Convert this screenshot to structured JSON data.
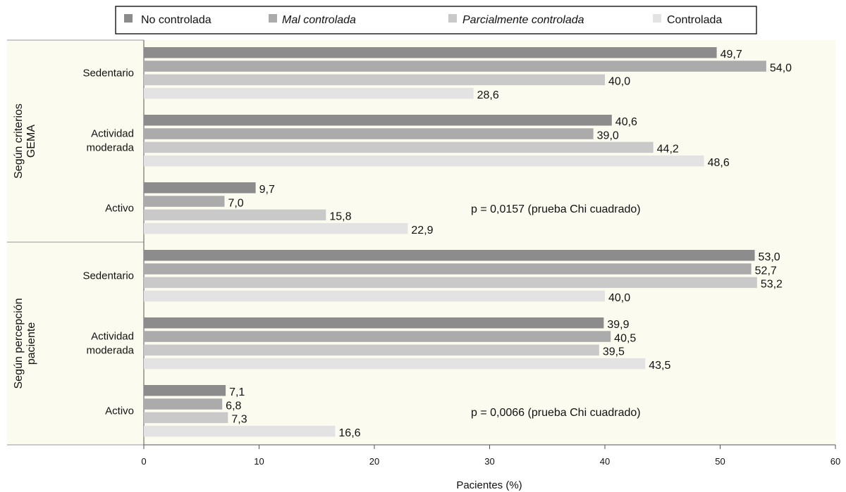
{
  "chart_data": {
    "type": "bar",
    "orientation": "horizontal",
    "legend_position": "top",
    "xlabel": "Pacientes (%)",
    "xlim": [
      0,
      60
    ],
    "xticks": [
      0,
      10,
      20,
      30,
      40,
      50,
      60
    ],
    "series": [
      {
        "name": "No controlada",
        "italic": false,
        "color": "#8c8c8c"
      },
      {
        "name": "Mal controlada",
        "italic": true,
        "color": "#ababab"
      },
      {
        "name": "Parcialmente controlada",
        "italic": true,
        "color": "#c9c9c9"
      },
      {
        "name": "Controlada",
        "italic": false,
        "color": "#e3e3e3"
      }
    ],
    "groups": [
      {
        "label_lines": [
          "Según criterios",
          "GEMA"
        ],
        "annotation": "p = 0,0157 (prueba Chi cuadrado)",
        "categories": [
          {
            "label_lines": [
              "Sedentario"
            ],
            "values": [
              49.7,
              54.0,
              40.0,
              28.6
            ],
            "labels": [
              "49,7",
              "54,0",
              "40,0",
              "28,6"
            ]
          },
          {
            "label_lines": [
              "Actividad",
              "moderada"
            ],
            "values": [
              40.6,
              39.0,
              44.2,
              48.6
            ],
            "labels": [
              "40,6",
              "39,0",
              "44,2",
              "48,6"
            ]
          },
          {
            "label_lines": [
              "Activo"
            ],
            "values": [
              9.7,
              7.0,
              15.8,
              22.9
            ],
            "labels": [
              "9,7",
              "7,0",
              "15,8",
              "22,9"
            ]
          }
        ]
      },
      {
        "label_lines": [
          "Según percepción",
          "paciente"
        ],
        "annotation": "p = 0,0066 (prueba Chi cuadrado)",
        "categories": [
          {
            "label_lines": [
              "Sedentario"
            ],
            "values": [
              53.0,
              52.7,
              53.2,
              40.0
            ],
            "labels": [
              "53,0",
              "52,7",
              "53,2",
              "40,0"
            ]
          },
          {
            "label_lines": [
              "Actividad",
              "moderada"
            ],
            "values": [
              39.9,
              40.5,
              39.5,
              43.5
            ],
            "labels": [
              "39,9",
              "40,5",
              "39,5",
              "43,5"
            ]
          },
          {
            "label_lines": [
              "Activo"
            ],
            "values": [
              7.1,
              6.8,
              7.3,
              16.6
            ],
            "labels": [
              "7,1",
              "6,8",
              "7,3",
              "16,6"
            ]
          }
        ]
      }
    ],
    "colors": {
      "plot_background": "#fcfbef",
      "axis": "#555555"
    }
  }
}
